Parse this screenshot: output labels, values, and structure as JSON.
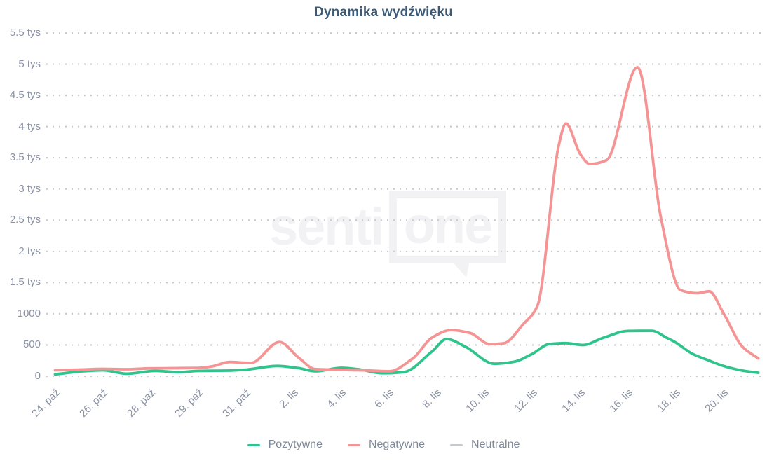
{
  "title": "Dynamika wydźwięku",
  "watermark": {
    "left": "senti",
    "boxed": "one"
  },
  "legend": {
    "items": [
      {
        "key": "pozytywne",
        "label": "Pozytywne",
        "color": "#2fc48c"
      },
      {
        "key": "negatywne",
        "label": "Negatywne",
        "color": "#f59494"
      },
      {
        "key": "neutralne",
        "label": "Neutralne",
        "color": "#c6c9ce"
      }
    ]
  },
  "chart_data": {
    "type": "line",
    "title": "Dynamika wydźwięku",
    "grid": "horizontal-dotted",
    "legend_position": "bottom-center",
    "x_axis": {
      "labels": [
        "24. paź",
        "26. paź",
        "28. paź",
        "29. paź",
        "31. paź",
        "2. lis",
        "4. lis",
        "6. lis",
        "8. lis",
        "10. lis",
        "12. lis",
        "14. lis",
        "16. lis",
        "18. lis",
        "20. lis"
      ],
      "unit_note": "series x values are tick indices: 0 = '24. paź' ... 14 = '20. lis'; fractional x = between labeled ticks"
    },
    "y_axis": {
      "range": [
        0,
        5500
      ],
      "ticks": [
        {
          "value": 0,
          "label": "0"
        },
        {
          "value": 500,
          "label": "500"
        },
        {
          "value": 1000,
          "label": "1000"
        },
        {
          "value": 1500,
          "label": "1.5 tys"
        },
        {
          "value": 2000,
          "label": "2 tys"
        },
        {
          "value": 2500,
          "label": "2.5 tys"
        },
        {
          "value": 3000,
          "label": "3 tys"
        },
        {
          "value": 3500,
          "label": "3.5 tys"
        },
        {
          "value": 4000,
          "label": "4 tys"
        },
        {
          "value": 4500,
          "label": "4.5 tys"
        },
        {
          "value": 5000,
          "label": "5 tys"
        },
        {
          "value": 5500,
          "label": "5.5 tys"
        }
      ]
    },
    "series": [
      {
        "name": "Pozytywne",
        "color": "#2fc48c",
        "visible": true,
        "points": [
          [
            0,
            30
          ],
          [
            0.6,
            80
          ],
          [
            1,
            95
          ],
          [
            1.5,
            40
          ],
          [
            2.1,
            85
          ],
          [
            2.6,
            65
          ],
          [
            3,
            85
          ],
          [
            3.6,
            90
          ],
          [
            4,
            105
          ],
          [
            4.65,
            165
          ],
          [
            5.1,
            130
          ],
          [
            5.45,
            80
          ],
          [
            6,
            135
          ],
          [
            6.35,
            112
          ],
          [
            6.85,
            48
          ],
          [
            7.3,
            65
          ],
          [
            7.9,
            400
          ],
          [
            8.2,
            595
          ],
          [
            8.6,
            470
          ],
          [
            9.2,
            200
          ],
          [
            9.6,
            230
          ],
          [
            10,
            360
          ],
          [
            10.35,
            515
          ],
          [
            10.7,
            530
          ],
          [
            11.05,
            500
          ],
          [
            11.5,
            620
          ],
          [
            12,
            725
          ],
          [
            12.5,
            728
          ],
          [
            12.8,
            620
          ],
          [
            13,
            540
          ],
          [
            13.35,
            360
          ],
          [
            13.7,
            250
          ],
          [
            14,
            165
          ],
          [
            14.4,
            90
          ],
          [
            14.73,
            55
          ]
        ]
      },
      {
        "name": "Negatywne",
        "color": "#f59494",
        "visible": true,
        "points": [
          [
            0,
            95
          ],
          [
            0.6,
            108
          ],
          [
            1,
            118
          ],
          [
            1.5,
            112
          ],
          [
            2,
            126
          ],
          [
            2.5,
            129
          ],
          [
            3,
            134
          ],
          [
            3.3,
            160
          ],
          [
            3.65,
            228
          ],
          [
            4.1,
            212
          ],
          [
            4.7,
            548
          ],
          [
            5.1,
            300
          ],
          [
            5.45,
            115
          ],
          [
            6,
            102
          ],
          [
            6.5,
            93
          ],
          [
            7,
            80
          ],
          [
            7.5,
            290
          ],
          [
            7.9,
            620
          ],
          [
            8.3,
            740
          ],
          [
            8.7,
            690
          ],
          [
            9.1,
            515
          ],
          [
            9.4,
            528
          ],
          [
            9.8,
            830
          ],
          [
            10.1,
            1120
          ],
          [
            10.55,
            3700
          ],
          [
            10.7,
            4050
          ],
          [
            11,
            3560
          ],
          [
            11.2,
            3400
          ],
          [
            11.55,
            3460
          ],
          [
            12.2,
            4950
          ],
          [
            12.7,
            2500
          ],
          [
            13.1,
            1380
          ],
          [
            13.45,
            1330
          ],
          [
            13.7,
            1360
          ],
          [
            14,
            1010
          ],
          [
            14.4,
            470
          ],
          [
            14.73,
            285
          ]
        ]
      },
      {
        "name": "Neutralne",
        "color": "#c6c9ce",
        "visible": false,
        "points": []
      }
    ]
  }
}
